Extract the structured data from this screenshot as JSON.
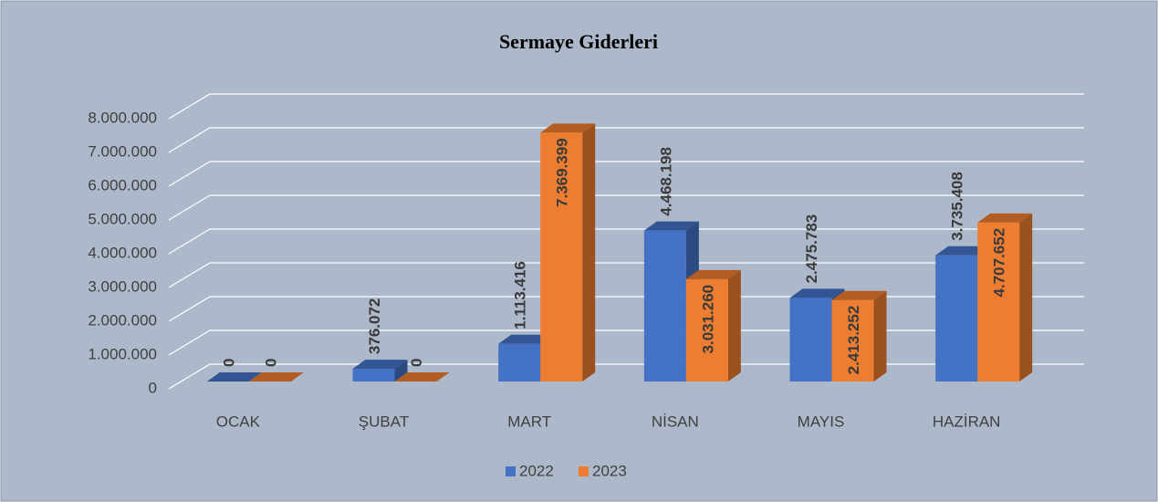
{
  "chart_data": {
    "type": "bar3d",
    "title": "Sermaye Giderleri",
    "categories": [
      "OCAK",
      "ŞUBAT",
      "MART",
      "NİSAN",
      "MAYIS",
      "HAZİRAN"
    ],
    "series": [
      {
        "name": "2022",
        "color": "#4472c4",
        "values": [
          0,
          376072,
          1113416,
          4468198,
          2475783,
          3735408
        ],
        "value_labels": [
          "0",
          "376.072",
          "1.113.416",
          "4.468.198",
          "2.475.783",
          "3.735.408"
        ]
      },
      {
        "name": "2023",
        "color": "#ed7d31",
        "values": [
          0,
          0,
          7369399,
          3031260,
          2413252,
          4707652
        ],
        "value_labels": [
          "0",
          "0",
          "7.369.399",
          "3.031.260",
          "2.413.252",
          "4.707.652"
        ]
      }
    ],
    "ylim": [
      0,
      8000000
    ],
    "yticks": [
      0,
      {
        "value": 1000000,
        "label": "1.000.000"
      },
      {
        "value": 2000000,
        "label": "2.000.000"
      },
      {
        "value": 3000000,
        "label": "3.000.000"
      },
      {
        "value": 4000000,
        "label": "4.000.000"
      },
      {
        "value": 5000000,
        "label": "5.000.000"
      },
      {
        "value": 6000000,
        "label": "6.000.000"
      },
      {
        "value": 7000000,
        "label": "7.000.000"
      },
      {
        "value": 8000000,
        "label": "8.000.000"
      }
    ],
    "grid": true,
    "legend": "bottom"
  }
}
